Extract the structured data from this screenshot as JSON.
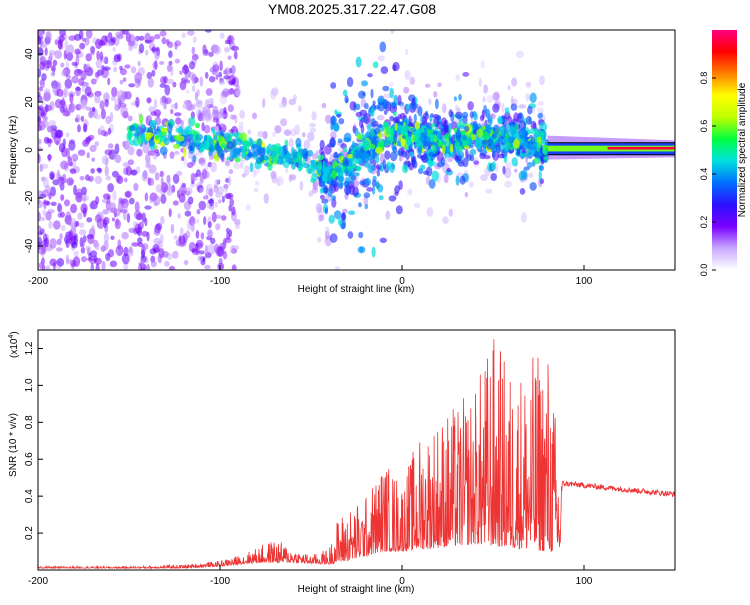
{
  "page_title": "YM08.2025.317.22.47.G08",
  "colorbar": {
    "label": "Normalized spectral amplitude",
    "ticks": [
      0.0,
      0.2,
      0.4,
      0.6,
      0.8
    ],
    "tick_labels": [
      "0.0",
      "0.2",
      "0.4",
      "0.6",
      "0.8"
    ],
    "range": [
      0,
      1
    ],
    "stops": [
      "#ffffff",
      "#c8a8ff",
      "#7a00ff",
      "#2a10ff",
      "#0070ff",
      "#00e0e0",
      "#00ff40",
      "#c0ff00",
      "#ffff00",
      "#ff8000",
      "#ff0000",
      "#ff0080"
    ]
  },
  "chart_data": [
    {
      "type": "heatmap",
      "title": "YM08.2025.317.22.47.G08",
      "xlabel": "Height of straight line (km)",
      "ylabel": "Frequency (Hz)",
      "xlim": [
        -200,
        150
      ],
      "ylim": [
        -50,
        50
      ],
      "xticks": [
        -200,
        -100,
        0,
        100
      ],
      "xtick_labels": [
        "-200",
        "-100",
        "0",
        "100"
      ],
      "yticks": [
        -40,
        -20,
        0,
        20,
        40
      ],
      "ytick_labels": [
        "-40",
        "-20",
        "0",
        "20",
        "40"
      ],
      "ridge": {
        "x": [
          -150,
          -130,
          -110,
          -90,
          -70,
          -55,
          -45,
          -40,
          -30,
          -20,
          -10,
          -2,
          0,
          10,
          20,
          30,
          40,
          50,
          60,
          70,
          80,
          100,
          120,
          150
        ],
        "y": [
          7,
          6,
          4,
          1,
          -2,
          -4,
          -8,
          -10,
          -6,
          0,
          5,
          8,
          6,
          5,
          3,
          4,
          6,
          4,
          5,
          4,
          1,
          1,
          1,
          1
        ]
      },
      "line_x_start": 80,
      "zones": [
        {
          "x": [
            -200,
            -120
          ],
          "amp": 0.15
        },
        {
          "x": [
            -150,
            -40
          ],
          "amp": 0.5
        },
        {
          "x": [
            -40,
            0
          ],
          "amp": 0.25
        },
        {
          "x": [
            0,
            80
          ],
          "amp": 0.45
        },
        {
          "x": [
            80,
            150
          ],
          "amp": 0.9
        }
      ]
    },
    {
      "type": "line",
      "xlabel": "Height of straight line (km)",
      "ylabel": "SNR (10 * v/v)",
      "scale_label": "(x10",
      "scale_exp": "4",
      "scale_close": ")",
      "xlim": [
        -200,
        150
      ],
      "ylim": [
        0,
        1.3
      ],
      "xticks": [
        -200,
        -100,
        0,
        100
      ],
      "xtick_labels": [
        "-200",
        "-100",
        "0",
        "100"
      ],
      "yticks": [
        0.2,
        0.4,
        0.6,
        0.8,
        1.0,
        1.2
      ],
      "ytick_labels": [
        "0.2",
        "0.4",
        "0.6",
        "0.8",
        "1.0",
        "1.2"
      ],
      "series": [
        {
          "name": "SNR",
          "color": "#ee3333",
          "envelope_x": [
            -200,
            -150,
            -120,
            -100,
            -90,
            -80,
            -70,
            -60,
            -50,
            -40,
            -35,
            -20,
            -10,
            0,
            10,
            20,
            30,
            40,
            50,
            55,
            60,
            70,
            80,
            85,
            87,
            88,
            100,
            120,
            150
          ],
          "envelope_y": [
            0.02,
            0.02,
            0.03,
            0.05,
            0.08,
            0.12,
            0.17,
            0.12,
            0.08,
            0.12,
            0.3,
            0.4,
            0.6,
            0.5,
            0.75,
            0.85,
            0.9,
            1.0,
            1.3,
            1.2,
            1.1,
            1.15,
            1.25,
            0.8,
            0.55,
            0.5,
            0.48,
            0.45,
            0.41
          ],
          "baseline_x": [
            -200,
            -120,
            -100,
            -80,
            -60,
            -40,
            -30,
            -10,
            0,
            20,
            40,
            60,
            80,
            87,
            88,
            150
          ],
          "baseline_y": [
            0.01,
            0.01,
            0.02,
            0.04,
            0.04,
            0.03,
            0.05,
            0.1,
            0.1,
            0.12,
            0.14,
            0.12,
            0.1,
            0.1,
            0.47,
            0.41
          ]
        }
      ]
    }
  ]
}
